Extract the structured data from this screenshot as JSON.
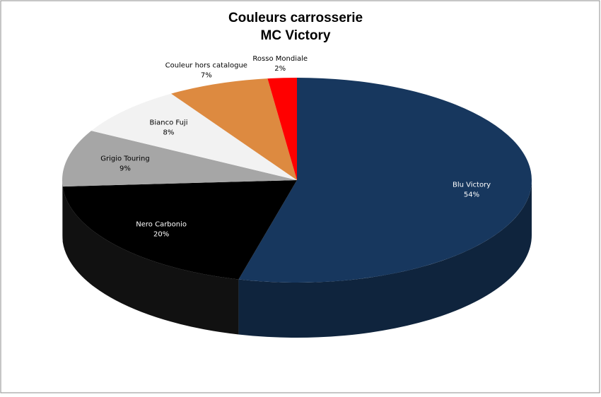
{
  "chart_data": {
    "type": "pie3d",
    "title": "Couleurs carrosserie",
    "subtitle": "MC Victory",
    "categories": [
      "Blu Victory",
      "Nero Carbonio",
      "Grigio Touring",
      "Bianco Fuji",
      "Couleur hors catalogue",
      "Rosso Mondiale"
    ],
    "values": [
      54,
      20,
      9,
      8,
      7,
      2
    ],
    "value_labels": [
      "54%",
      "20%",
      "9%",
      "8%",
      "7%",
      "2%"
    ],
    "colors": [
      "#17375e",
      "#000000",
      "#a6a6a6",
      "#f2f2f2",
      "#dd8a40",
      "#ff0000"
    ]
  }
}
